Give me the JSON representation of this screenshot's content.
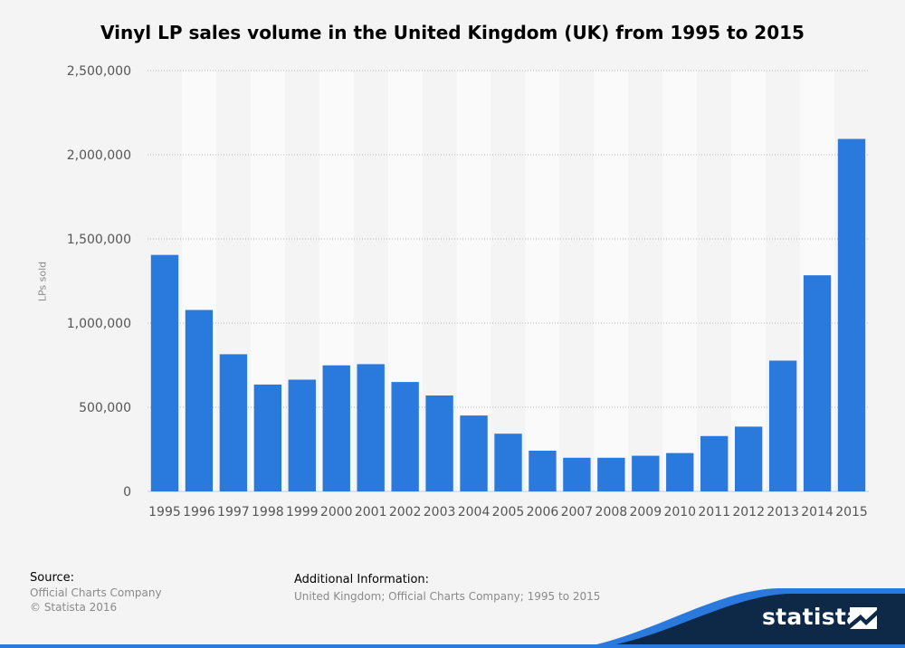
{
  "chart_data": {
    "type": "bar",
    "title": "Vinyl LP sales volume in the United Kingdom (UK) from 1995 to 2015",
    "xlabel": "",
    "ylabel": "LPs sold",
    "ylim": [
      0,
      2500000
    ],
    "yticks": [
      0,
      500000,
      1000000,
      1500000,
      2000000,
      2500000
    ],
    "ytick_labels": [
      "0",
      "500,000",
      "1,000,000",
      "1,500,000",
      "2,000,000",
      "2,500,000"
    ],
    "grid": true,
    "categories": [
      "1995",
      "1996",
      "1997",
      "1998",
      "1999",
      "2000",
      "2001",
      "2002",
      "2003",
      "2004",
      "2005",
      "2006",
      "2007",
      "2008",
      "2009",
      "2010",
      "2011",
      "2012",
      "2013",
      "2014",
      "2015"
    ],
    "values": [
      1405000,
      1078000,
      815000,
      635000,
      664000,
      749000,
      756000,
      650000,
      570000,
      451000,
      343000,
      242000,
      200000,
      200000,
      212000,
      228000,
      329000,
      385000,
      777000,
      1284000,
      2094000
    ],
    "bar_color": "#2a79dc"
  },
  "footer": {
    "source_heading": "Source:",
    "source_lines": [
      "Official Charts Company",
      "© Statista 2016"
    ],
    "additional_heading": "Additional Information:",
    "additional_text": "United Kingdom; Official Charts Company; 1995 to 2015"
  },
  "brand": {
    "name": "statista",
    "colors": {
      "navy": "#0e2847",
      "blue": "#2a79dc"
    }
  }
}
